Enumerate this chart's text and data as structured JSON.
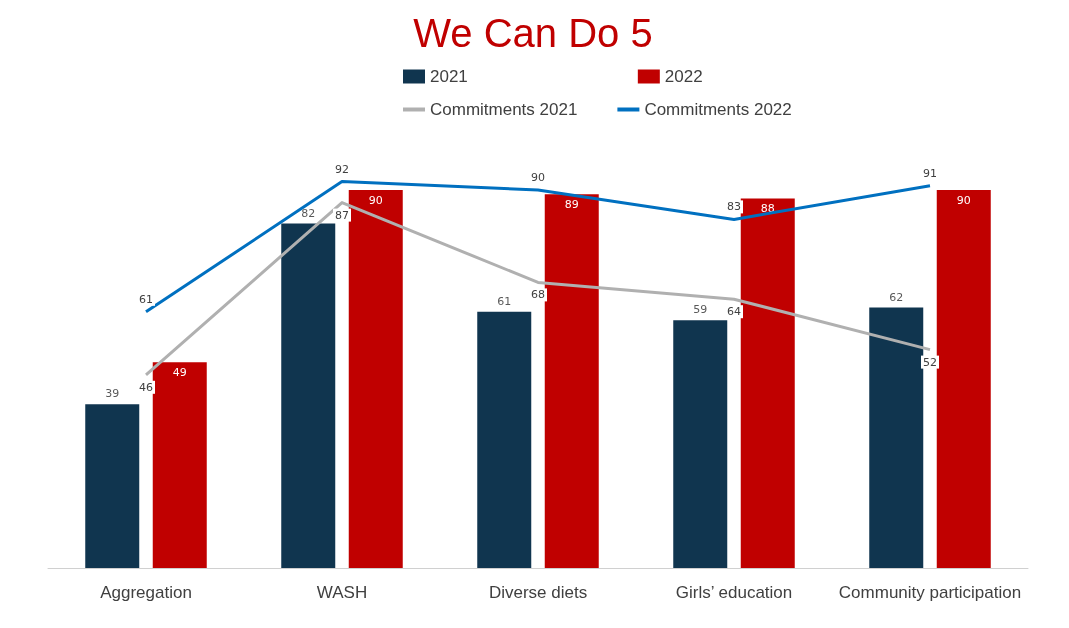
{
  "chart_data": {
    "type": "bar",
    "title": "We Can Do 5",
    "categories": [
      "Aggregation",
      "WASH",
      "Diverse diets",
      "Girls’ education",
      "Community participation"
    ],
    "series": [
      {
        "name": "2021",
        "color": "#10354f",
        "values": [
          39,
          82,
          61,
          59,
          62
        ]
      },
      {
        "name": "2022",
        "color": "#c00000",
        "values": [
          49,
          90,
          89,
          88,
          90
        ]
      },
      {
        "name": "Commitments 2021",
        "type": "line",
        "color": "#b0b0b0",
        "values": [
          46,
          87,
          68,
          64,
          52
        ]
      },
      {
        "name": "Commitments 2022",
        "type": "line",
        "color": "#0070c0",
        "values": [
          61,
          92,
          90,
          83,
          91
        ]
      }
    ],
    "data_labels": true,
    "grid": false,
    "legend": "top",
    "marker": "none"
  }
}
